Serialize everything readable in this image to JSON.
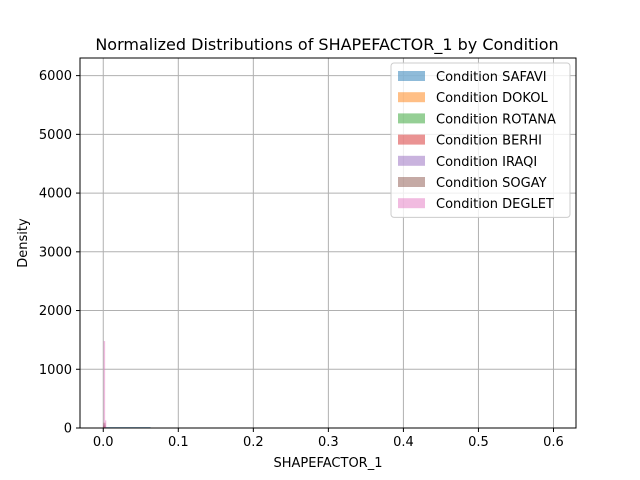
{
  "chart_data": {
    "type": "histogram",
    "title": "Normalized Distributions of SHAPEFACTOR_1 by Condition",
    "xlabel": "SHAPEFACTOR_1",
    "ylabel": "Density",
    "xlim": [
      -0.031,
      0.63
    ],
    "ylim": [
      0,
      6300
    ],
    "xticks": [
      0.0,
      0.1,
      0.2,
      0.3,
      0.4,
      0.5,
      0.6
    ],
    "xtick_labels": [
      "0.0",
      "0.1",
      "0.2",
      "0.3",
      "0.4",
      "0.5",
      "0.6"
    ],
    "yticks": [
      0,
      1000,
      2000,
      3000,
      4000,
      5000,
      6000
    ],
    "ytick_labels": [
      "0",
      "1000",
      "2000",
      "3000",
      "4000",
      "5000",
      "6000"
    ],
    "grid": true,
    "legend_position": "top-right",
    "series": [
      {
        "name": "Condition SAFAVI",
        "color": "#1f77b4",
        "bins": [
          {
            "x0": 0.0,
            "x1": 0.063,
            "y": 16
          }
        ]
      },
      {
        "name": "Condition DOKOL",
        "color": "#ff7f0e",
        "bins": [
          {
            "x0": 0.0,
            "x1": 0.003,
            "y": 20
          }
        ]
      },
      {
        "name": "Condition ROTANA",
        "color": "#2ca02c",
        "bins": [
          {
            "x0": 0.0,
            "x1": 0.003,
            "y": 30
          }
        ]
      },
      {
        "name": "Condition BERHI",
        "color": "#d62728",
        "bins": [
          {
            "x0": 0.0,
            "x1": 0.003,
            "y": 40
          }
        ]
      },
      {
        "name": "Condition IRAQI",
        "color": "#9467bd",
        "bins": [
          {
            "x0": 0.0,
            "x1": 0.003,
            "y": 60
          }
        ]
      },
      {
        "name": "Condition SOGAY",
        "color": "#8c564b",
        "bins": [
          {
            "x0": 0.0,
            "x1": 0.003,
            "y": 90
          }
        ]
      },
      {
        "name": "Condition DEGLET",
        "color": "#e377c2",
        "bins": [
          {
            "x0": 0.0005,
            "x1": 0.0025,
            "y": 1480
          },
          {
            "x0": 0.0025,
            "x1": 0.004,
            "y": 130
          }
        ]
      }
    ]
  }
}
